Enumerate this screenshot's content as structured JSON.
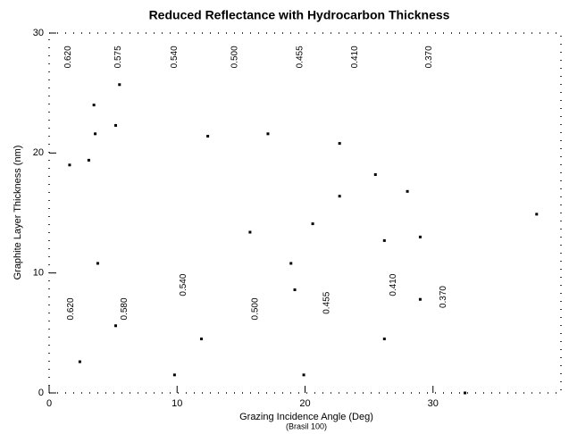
{
  "chart_data": {
    "type": "scatter",
    "title": "Reduced Reflectance with Hydrocarbon Thickness",
    "x_label": "Grazing Incidence Angle (Deg)",
    "x_sublabel": "(Brasil 100)",
    "y_label": "Graphite Layer Thickness (nm)",
    "color": "#000000",
    "x": [
      3.5,
      3.6,
      5.5,
      5.2,
      1.6,
      3.1,
      12.4,
      17.1,
      22.7,
      25.5,
      22.7,
      28.0,
      38.1,
      15.7,
      26.2,
      29.0,
      3.8,
      18.9,
      19.2,
      2.4,
      11.9,
      5.2,
      9.8,
      26.2,
      32.5,
      19.9,
      29.0,
      20.6
    ],
    "values": [
      24.0,
      21.6,
      25.7,
      22.3,
      19.0,
      19.4,
      21.4,
      21.6,
      20.8,
      18.2,
      16.4,
      16.8,
      14.9,
      13.4,
      12.7,
      13.0,
      10.8,
      10.8,
      8.6,
      2.6,
      4.5,
      5.6,
      1.5,
      4.5,
      0,
      1.5,
      7.8,
      14.1
    ],
    "annotations": [
      {
        "text": "0.620",
        "x": 1.5,
        "y": 28.0
      },
      {
        "text": "0.575",
        "x": 5.4,
        "y": 28.0
      },
      {
        "text": "0.540",
        "x": 9.8,
        "y": 28.0
      },
      {
        "text": "0.500",
        "x": 14.5,
        "y": 28.0
      },
      {
        "text": "0.455",
        "x": 19.6,
        "y": 28.0
      },
      {
        "text": "0.410",
        "x": 23.9,
        "y": 28.0
      },
      {
        "text": "0.370",
        "x": 29.7,
        "y": 28.0
      },
      {
        "text": "0.620",
        "x": 1.7,
        "y": 7.0
      },
      {
        "text": "0.580",
        "x": 5.9,
        "y": 7.0
      },
      {
        "text": "0.540",
        "x": 10.5,
        "y": 9.0
      },
      {
        "text": "0.500",
        "x": 16.1,
        "y": 7.0
      },
      {
        "text": "0.455",
        "x": 21.7,
        "y": 7.5
      },
      {
        "text": "0.410",
        "x": 26.9,
        "y": 9.0
      },
      {
        "text": "0.370",
        "x": 30.8,
        "y": 8.0
      }
    ],
    "xlim": [
      0,
      40
    ],
    "xticks": [
      0,
      10,
      20,
      30
    ],
    "ylim": [
      0,
      30
    ],
    "yticks": [
      0,
      10,
      20,
      30
    ]
  }
}
